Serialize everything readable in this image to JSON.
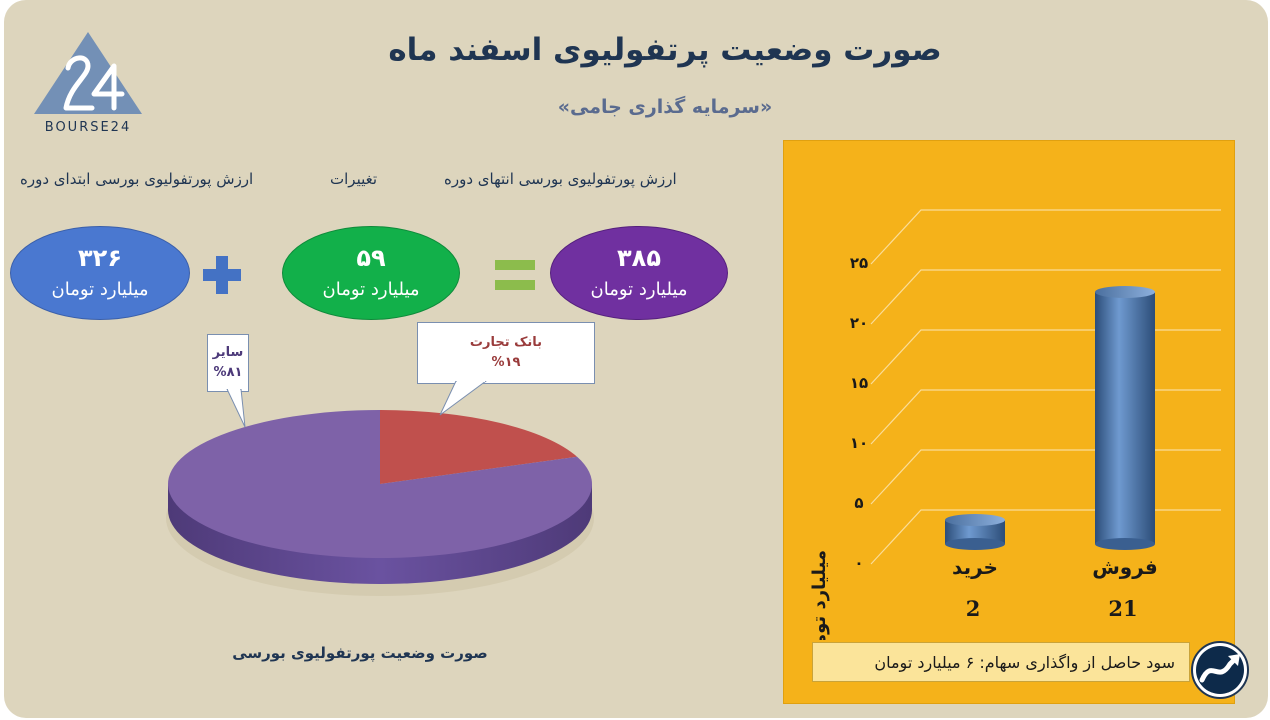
{
  "header": {
    "title": "صورت وضعیت پرتفولیوی اسفند ماه",
    "subtitle": "«سرمایه گذاری جامی»",
    "logo_text": "BOURSE24"
  },
  "summary": {
    "end_label": "ارزش پورتفولیوی بورسی انتهای دوره",
    "change_label": "تغییرات",
    "start_label": "ارزش پورتفولیوی بورسی ابتدای دوره",
    "end_value": "۳۸۵",
    "change_value": "۵۹",
    "start_value": "۳۲۶",
    "unit": "میلیارد تومان",
    "plus_symbol": "+",
    "equals_symbol": "=",
    "colors": {
      "end": "#7030a0",
      "change": "#12b04a",
      "start": "#4a78d0",
      "operators": "#4472c4",
      "equals": "#8cbc4c"
    }
  },
  "chart_data": [
    {
      "type": "pie",
      "title": "صورت وضعیت پورتفولیوی بورسی",
      "slices": [
        {
          "label": "سایر",
          "value": 81,
          "display": "%۸۱",
          "color": "#7e62a8"
        },
        {
          "label": "بانک تجارت",
          "value": 19,
          "display": "%۱۹",
          "color": "#c0504d"
        }
      ]
    },
    {
      "type": "bar",
      "categories": [
        "فروش",
        "خرید"
      ],
      "values": [
        21,
        2
      ],
      "value_labels": [
        "21",
        "2"
      ],
      "ylabel": "میلیارد تومان",
      "ylim": [
        0,
        25
      ],
      "yticks": [
        "۰",
        "۵",
        "۱۰",
        "۱۵",
        "۲۰",
        "۲۵"
      ],
      "grid": true,
      "bar_color": "#4f81bd"
    }
  ],
  "footer": {
    "profit_text": "سود حاصل از واگذاری سهام: ۶ میلیارد تومان"
  }
}
